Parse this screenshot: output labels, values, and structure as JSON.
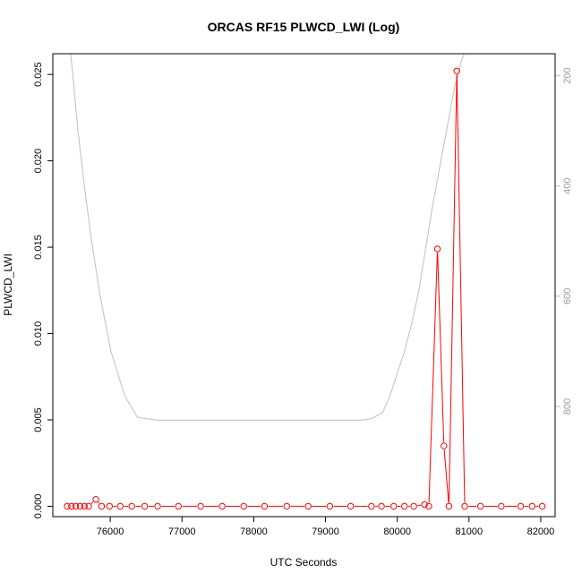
{
  "chart_data": {
    "type": "line",
    "title": "ORCAS RF15 PLWCD_LWI (Log)",
    "xlabel": "UTC Seconds",
    "ylabel": "PLWCD_LWI",
    "xlim": [
      75200,
      82200
    ],
    "ylim": [
      -0.0006,
      0.0262
    ],
    "x_ticks": [
      "76000",
      "77000",
      "78000",
      "79000",
      "80000",
      "81000",
      "82000"
    ],
    "y_ticks": [
      "0.000",
      "0.005",
      "0.010",
      "0.015",
      "0.020",
      "0.025"
    ],
    "y2_ticks": [
      "200",
      "400",
      "600",
      "800"
    ],
    "y2lim": [
      160,
      1000
    ],
    "y2_reversed": true,
    "colors": {
      "series": "#ff0000",
      "altitude": "#bebebe",
      "axis": "#000000",
      "y2_axis": "#bebebe"
    },
    "series": [
      {
        "color": "#ff0000",
        "x": [
          75400,
          75460,
          75520,
          75580,
          75640,
          75700,
          75800,
          75880,
          75990,
          76140,
          76300,
          76480,
          76660,
          76950,
          77260,
          77560,
          77860,
          78150,
          78460,
          78760,
          79060,
          79350,
          79640,
          79780,
          79950,
          80100,
          80230,
          80380,
          80440,
          80560,
          80650,
          80720,
          80830,
          80940,
          81160,
          81450,
          81720,
          81880,
          82020
        ],
        "y": [
          0,
          0,
          0,
          0,
          0,
          0,
          0.0004,
          0,
          0,
          0,
          0,
          0,
          0,
          0,
          0,
          0,
          0,
          0,
          0,
          0,
          0,
          0,
          0,
          0,
          0,
          0,
          0,
          0.0001,
          0,
          0.0149,
          0.0035,
          0,
          0.0252,
          0,
          0,
          0,
          0,
          0,
          0
        ]
      },
      {
        "axis": "right",
        "color": "#bebebe",
        "x": [
          75440,
          75480,
          75550,
          75640,
          75740,
          75860,
          76010,
          76200,
          76380,
          76650,
          77000,
          77500,
          78000,
          78500,
          79000,
          79500,
          79650,
          79800,
          79900,
          80000,
          80100,
          80200,
          80300,
          80400,
          80500,
          80600,
          80700,
          80800,
          80900,
          80970
        ],
        "y": [
          150,
          200,
          300,
          400,
          500,
          600,
          700,
          780,
          820,
          825,
          825,
          825,
          825,
          825,
          825,
          825,
          822,
          810,
          780,
          740,
          700,
          650,
          590,
          510,
          430,
          360,
          290,
          220,
          170,
          150
        ]
      }
    ]
  }
}
